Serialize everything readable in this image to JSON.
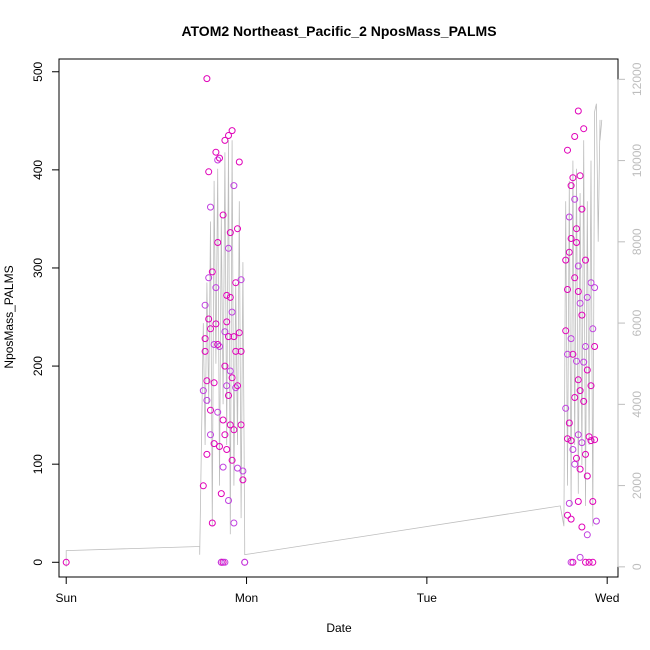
{
  "chart_data": {
    "type": "scatter",
    "title": "ATOM2 Northeast_Pacific_2 NposMass_PALMS",
    "xlabel": "Date",
    "ylabel": "NposMass_PALMS",
    "x_unit": "days",
    "x_ticks": [
      {
        "value": 0,
        "label": "Sun"
      },
      {
        "value": 1,
        "label": "Mon"
      },
      {
        "value": 2,
        "label": "Tue"
      },
      {
        "value": 3,
        "label": "Wed"
      }
    ],
    "xlim": [
      -0.04,
      3.06
    ],
    "ylim": [
      -15,
      513
    ],
    "y_ticks": [
      0,
      100,
      200,
      300,
      400,
      500
    ],
    "y2lim": [
      -250,
      12500
    ],
    "y2_ticks": [
      0,
      2000,
      4000,
      6000,
      8000,
      10000,
      12000
    ],
    "grid": false,
    "legend": "none",
    "colors": {
      "points_primary": "#e000b8",
      "points_secondary": "#c040e0",
      "secondary_line": "#bdbdbd",
      "right_axis": "#bdbdbd"
    },
    "points": [
      {
        "x": 0.0,
        "y": 0
      },
      {
        "x": 0.76,
        "y": 175
      },
      {
        "x": 0.76,
        "y": 78
      },
      {
        "x": 0.77,
        "y": 228
      },
      {
        "x": 0.77,
        "y": 262
      },
      {
        "x": 0.77,
        "y": 215
      },
      {
        "x": 0.78,
        "y": 185
      },
      {
        "x": 0.78,
        "y": 165
      },
      {
        "x": 0.78,
        "y": 110
      },
      {
        "x": 0.78,
        "y": 493
      },
      {
        "x": 0.79,
        "y": 290
      },
      {
        "x": 0.79,
        "y": 248
      },
      {
        "x": 0.79,
        "y": 398
      },
      {
        "x": 0.8,
        "y": 362
      },
      {
        "x": 0.8,
        "y": 238
      },
      {
        "x": 0.8,
        "y": 155
      },
      {
        "x": 0.8,
        "y": 130
      },
      {
        "x": 0.81,
        "y": 40
      },
      {
        "x": 0.81,
        "y": 296
      },
      {
        "x": 0.82,
        "y": 222
      },
      {
        "x": 0.82,
        "y": 183
      },
      {
        "x": 0.82,
        "y": 121
      },
      {
        "x": 0.83,
        "y": 280
      },
      {
        "x": 0.83,
        "y": 418
      },
      {
        "x": 0.83,
        "y": 243
      },
      {
        "x": 0.84,
        "y": 410
      },
      {
        "x": 0.84,
        "y": 326
      },
      {
        "x": 0.84,
        "y": 222
      },
      {
        "x": 0.84,
        "y": 153
      },
      {
        "x": 0.85,
        "y": 118
      },
      {
        "x": 0.85,
        "y": 412
      },
      {
        "x": 0.85,
        "y": 220
      },
      {
        "x": 0.86,
        "y": 70
      },
      {
        "x": 0.86,
        "y": 0
      },
      {
        "x": 0.86,
        "y": 0
      },
      {
        "x": 0.87,
        "y": 354
      },
      {
        "x": 0.87,
        "y": 145
      },
      {
        "x": 0.87,
        "y": 97
      },
      {
        "x": 0.87,
        "y": 0
      },
      {
        "x": 0.88,
        "y": 430
      },
      {
        "x": 0.88,
        "y": 235
      },
      {
        "x": 0.88,
        "y": 200
      },
      {
        "x": 0.88,
        "y": 130
      },
      {
        "x": 0.88,
        "y": 0
      },
      {
        "x": 0.89,
        "y": 272
      },
      {
        "x": 0.89,
        "y": 245
      },
      {
        "x": 0.89,
        "y": 180
      },
      {
        "x": 0.89,
        "y": 115
      },
      {
        "x": 0.9,
        "y": 435
      },
      {
        "x": 0.9,
        "y": 320
      },
      {
        "x": 0.9,
        "y": 230
      },
      {
        "x": 0.9,
        "y": 170
      },
      {
        "x": 0.9,
        "y": 63
      },
      {
        "x": 0.91,
        "y": 336
      },
      {
        "x": 0.91,
        "y": 270
      },
      {
        "x": 0.91,
        "y": 195
      },
      {
        "x": 0.91,
        "y": 140
      },
      {
        "x": 0.92,
        "y": 440
      },
      {
        "x": 0.92,
        "y": 255
      },
      {
        "x": 0.92,
        "y": 188
      },
      {
        "x": 0.92,
        "y": 104
      },
      {
        "x": 0.93,
        "y": 384
      },
      {
        "x": 0.93,
        "y": 230
      },
      {
        "x": 0.93,
        "y": 135
      },
      {
        "x": 0.93,
        "y": 40
      },
      {
        "x": 0.94,
        "y": 285
      },
      {
        "x": 0.94,
        "y": 215
      },
      {
        "x": 0.94,
        "y": 178
      },
      {
        "x": 0.95,
        "y": 340
      },
      {
        "x": 0.95,
        "y": 180
      },
      {
        "x": 0.95,
        "y": 96
      },
      {
        "x": 0.96,
        "y": 408
      },
      {
        "x": 0.96,
        "y": 234
      },
      {
        "x": 0.97,
        "y": 288
      },
      {
        "x": 0.97,
        "y": 215
      },
      {
        "x": 0.97,
        "y": 140
      },
      {
        "x": 0.98,
        "y": 93
      },
      {
        "x": 0.98,
        "y": 84
      },
      {
        "x": 0.99,
        "y": 0
      },
      {
        "x": 0.99,
        "y": 0
      },
      {
        "x": 2.77,
        "y": 308
      },
      {
        "x": 2.77,
        "y": 236
      },
      {
        "x": 2.77,
        "y": 157
      },
      {
        "x": 2.78,
        "y": 420
      },
      {
        "x": 2.78,
        "y": 278
      },
      {
        "x": 2.78,
        "y": 212
      },
      {
        "x": 2.78,
        "y": 126
      },
      {
        "x": 2.78,
        "y": 48
      },
      {
        "x": 2.79,
        "y": 352
      },
      {
        "x": 2.79,
        "y": 316
      },
      {
        "x": 2.79,
        "y": 142
      },
      {
        "x": 2.79,
        "y": 60
      },
      {
        "x": 2.8,
        "y": 384
      },
      {
        "x": 2.8,
        "y": 330
      },
      {
        "x": 2.8,
        "y": 228
      },
      {
        "x": 2.8,
        "y": 124
      },
      {
        "x": 2.8,
        "y": 44
      },
      {
        "x": 2.8,
        "y": 0
      },
      {
        "x": 2.81,
        "y": 392
      },
      {
        "x": 2.81,
        "y": 212
      },
      {
        "x": 2.81,
        "y": 115
      },
      {
        "x": 2.81,
        "y": 0
      },
      {
        "x": 2.82,
        "y": 434
      },
      {
        "x": 2.82,
        "y": 370
      },
      {
        "x": 2.82,
        "y": 290
      },
      {
        "x": 2.82,
        "y": 168
      },
      {
        "x": 2.82,
        "y": 100
      },
      {
        "x": 2.83,
        "y": 340
      },
      {
        "x": 2.83,
        "y": 326
      },
      {
        "x": 2.83,
        "y": 205
      },
      {
        "x": 2.83,
        "y": 106
      },
      {
        "x": 2.84,
        "y": 460
      },
      {
        "x": 2.84,
        "y": 302
      },
      {
        "x": 2.84,
        "y": 276
      },
      {
        "x": 2.84,
        "y": 186
      },
      {
        "x": 2.84,
        "y": 130
      },
      {
        "x": 2.84,
        "y": 62
      },
      {
        "x": 2.85,
        "y": 394
      },
      {
        "x": 2.85,
        "y": 264
      },
      {
        "x": 2.85,
        "y": 175
      },
      {
        "x": 2.85,
        "y": 95
      },
      {
        "x": 2.85,
        "y": 5
      },
      {
        "x": 2.86,
        "y": 360
      },
      {
        "x": 2.86,
        "y": 252
      },
      {
        "x": 2.86,
        "y": 122
      },
      {
        "x": 2.86,
        "y": 36
      },
      {
        "x": 2.87,
        "y": 442
      },
      {
        "x": 2.87,
        "y": 204
      },
      {
        "x": 2.87,
        "y": 164
      },
      {
        "x": 2.88,
        "y": 308
      },
      {
        "x": 2.88,
        "y": 220
      },
      {
        "x": 2.88,
        "y": 110
      },
      {
        "x": 2.88,
        "y": 0
      },
      {
        "x": 2.89,
        "y": 270
      },
      {
        "x": 2.89,
        "y": 196
      },
      {
        "x": 2.89,
        "y": 88
      },
      {
        "x": 2.89,
        "y": 28
      },
      {
        "x": 2.9,
        "y": 128
      },
      {
        "x": 2.9,
        "y": 0
      },
      {
        "x": 2.91,
        "y": 285
      },
      {
        "x": 2.91,
        "y": 180
      },
      {
        "x": 2.91,
        "y": 124
      },
      {
        "x": 2.92,
        "y": 238
      },
      {
        "x": 2.92,
        "y": 62
      },
      {
        "x": 2.92,
        "y": 0
      },
      {
        "x": 2.93,
        "y": 280
      },
      {
        "x": 2.93,
        "y": 220
      },
      {
        "x": 2.93,
        "y": 125
      },
      {
        "x": 2.94,
        "y": 42
      }
    ],
    "secondary_series": [
      {
        "x": 0.0,
        "y": 0
      },
      {
        "x": 0.0,
        "y": 400
      },
      {
        "x": 0.74,
        "y": 500
      },
      {
        "x": 0.74,
        "y": 300
      },
      {
        "x": 0.76,
        "y": 6000
      },
      {
        "x": 0.77,
        "y": 3000
      },
      {
        "x": 0.78,
        "y": 7000
      },
      {
        "x": 0.79,
        "y": 4000
      },
      {
        "x": 0.8,
        "y": 8500
      },
      {
        "x": 0.81,
        "y": 1000
      },
      {
        "x": 0.82,
        "y": 9500
      },
      {
        "x": 0.83,
        "y": 5000
      },
      {
        "x": 0.84,
        "y": 9800
      },
      {
        "x": 0.85,
        "y": 2000
      },
      {
        "x": 0.86,
        "y": 8600
      },
      {
        "x": 0.87,
        "y": 4000
      },
      {
        "x": 0.88,
        "y": 10200
      },
      {
        "x": 0.89,
        "y": 3000
      },
      {
        "x": 0.9,
        "y": 10500
      },
      {
        "x": 0.91,
        "y": 800
      },
      {
        "x": 0.92,
        "y": 10500
      },
      {
        "x": 0.93,
        "y": 2000
      },
      {
        "x": 0.94,
        "y": 7000
      },
      {
        "x": 0.95,
        "y": 3000
      },
      {
        "x": 0.96,
        "y": 9000
      },
      {
        "x": 0.97,
        "y": 1200
      },
      {
        "x": 0.98,
        "y": 7500
      },
      {
        "x": 0.99,
        "y": 600
      },
      {
        "x": 0.99,
        "y": 300
      },
      {
        "x": 2.74,
        "y": 1500
      },
      {
        "x": 2.76,
        "y": 1000
      },
      {
        "x": 2.77,
        "y": 9000
      },
      {
        "x": 2.78,
        "y": 2000
      },
      {
        "x": 2.79,
        "y": 9500
      },
      {
        "x": 2.8,
        "y": 1500
      },
      {
        "x": 2.81,
        "y": 10000
      },
      {
        "x": 2.82,
        "y": 3000
      },
      {
        "x": 2.83,
        "y": 9800
      },
      {
        "x": 2.84,
        "y": 1800
      },
      {
        "x": 2.85,
        "y": 9200
      },
      {
        "x": 2.86,
        "y": 2500
      },
      {
        "x": 2.87,
        "y": 10500
      },
      {
        "x": 2.88,
        "y": 1500
      },
      {
        "x": 2.89,
        "y": 9000
      },
      {
        "x": 2.9,
        "y": 3000
      },
      {
        "x": 2.91,
        "y": 10000
      },
      {
        "x": 2.92,
        "y": 1000
      },
      {
        "x": 2.93,
        "y": 11200
      },
      {
        "x": 2.94,
        "y": 11400
      },
      {
        "x": 2.95,
        "y": 8000
      },
      {
        "x": 2.96,
        "y": 11000
      },
      {
        "x": 2.96,
        "y": 10500
      },
      {
        "x": 2.97,
        "y": 11000
      }
    ]
  }
}
